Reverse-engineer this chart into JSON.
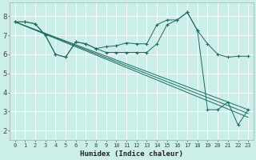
{
  "xlabel": "Humidex (Indice chaleur)",
  "bg_color": "#cceee8",
  "grid_color": "#ffffff",
  "line_color": "#1a6b62",
  "xlim": [
    -0.5,
    23.5
  ],
  "ylim": [
    1.5,
    8.7
  ],
  "xticks": [
    0,
    1,
    2,
    3,
    4,
    5,
    6,
    7,
    8,
    9,
    10,
    11,
    12,
    13,
    14,
    15,
    16,
    17,
    18,
    19,
    20,
    21,
    22,
    23
  ],
  "yticks": [
    2,
    3,
    4,
    5,
    6,
    7,
    8
  ],
  "curve1_x": [
    0,
    1,
    2,
    3,
    4,
    5,
    6,
    7,
    8,
    9,
    10,
    11,
    12,
    13,
    14,
    15,
    16,
    17,
    18,
    19,
    20,
    21,
    22,
    23
  ],
  "curve1_y": [
    7.7,
    7.7,
    7.6,
    7.0,
    6.0,
    5.85,
    6.65,
    6.55,
    6.3,
    6.4,
    6.45,
    6.6,
    6.55,
    6.55,
    7.55,
    7.8,
    7.8,
    8.2,
    7.25,
    6.55,
    6.0,
    5.85,
    5.9,
    5.9
  ],
  "curve2_x": [
    0,
    1,
    2,
    3,
    4,
    5,
    6,
    7,
    8,
    9,
    10,
    11,
    12,
    13,
    14,
    15,
    16,
    17,
    18,
    19,
    20,
    21,
    22,
    23
  ],
  "curve2_y": [
    7.7,
    7.7,
    7.6,
    7.0,
    6.0,
    5.85,
    6.65,
    6.55,
    6.3,
    6.1,
    6.1,
    6.1,
    6.1,
    6.1,
    6.55,
    7.55,
    7.8,
    8.2,
    7.25,
    3.1,
    3.1,
    3.5,
    2.3,
    3.1
  ],
  "straight_lines": [
    {
      "x0": 0,
      "y0": 7.7,
      "x1": 23,
      "y1": 3.1
    },
    {
      "x0": 0,
      "y0": 7.7,
      "x1": 23,
      "y1": 2.9
    },
    {
      "x0": 0,
      "y0": 7.7,
      "x1": 23,
      "y1": 2.7
    }
  ]
}
